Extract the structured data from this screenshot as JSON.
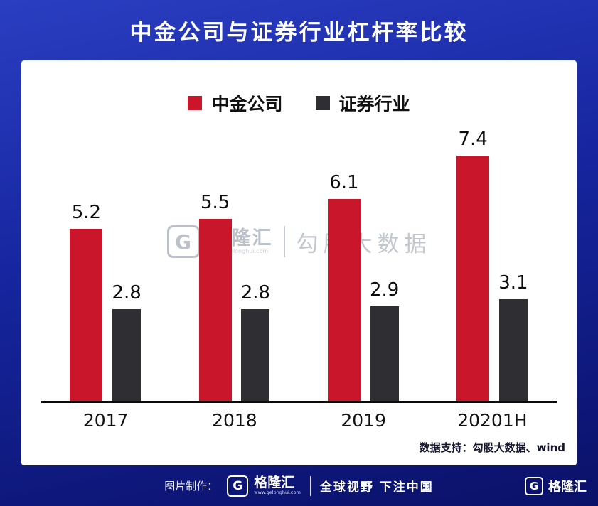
{
  "title": "中金公司与证券行业杠杆率比较",
  "chart_data": {
    "type": "bar",
    "categories": [
      "2017",
      "2018",
      "2019",
      "20201H"
    ],
    "series": [
      {
        "name": "中金公司",
        "color": "#c9162a",
        "values": [
          5.2,
          5.5,
          6.1,
          7.4
        ]
      },
      {
        "name": "证券行业",
        "color": "#2f2e33",
        "values": [
          2.8,
          2.8,
          2.9,
          3.1
        ]
      }
    ],
    "title": "中金公司与证券行业杠杆率比较",
    "xlabel": "",
    "ylabel": "",
    "ylim": [
      0,
      8.5
    ],
    "grid": false,
    "legend_position": "top-center",
    "data_labels": true
  },
  "watermark": {
    "logo_letter": "G",
    "logo_name": "格隆汇",
    "logo_url": "www.gelonghui.com",
    "text": "勾股大数据"
  },
  "source_note": "数据支持：勾股大数据、wind",
  "footer": {
    "credit_label": "图片制作：",
    "logo_letter": "G",
    "logo_name": "格隆汇",
    "logo_url": "www.gelonghui.com",
    "slogan": "全球视野 下注中国",
    "right_logo_letter": "G",
    "right_logo_name": "格隆汇"
  },
  "colors": {
    "bg_top": "#2a3ec2",
    "bg_bottom": "#0a1168",
    "panel": "#ffffff",
    "series1": "#c9162a",
    "series2": "#2f2e33"
  }
}
